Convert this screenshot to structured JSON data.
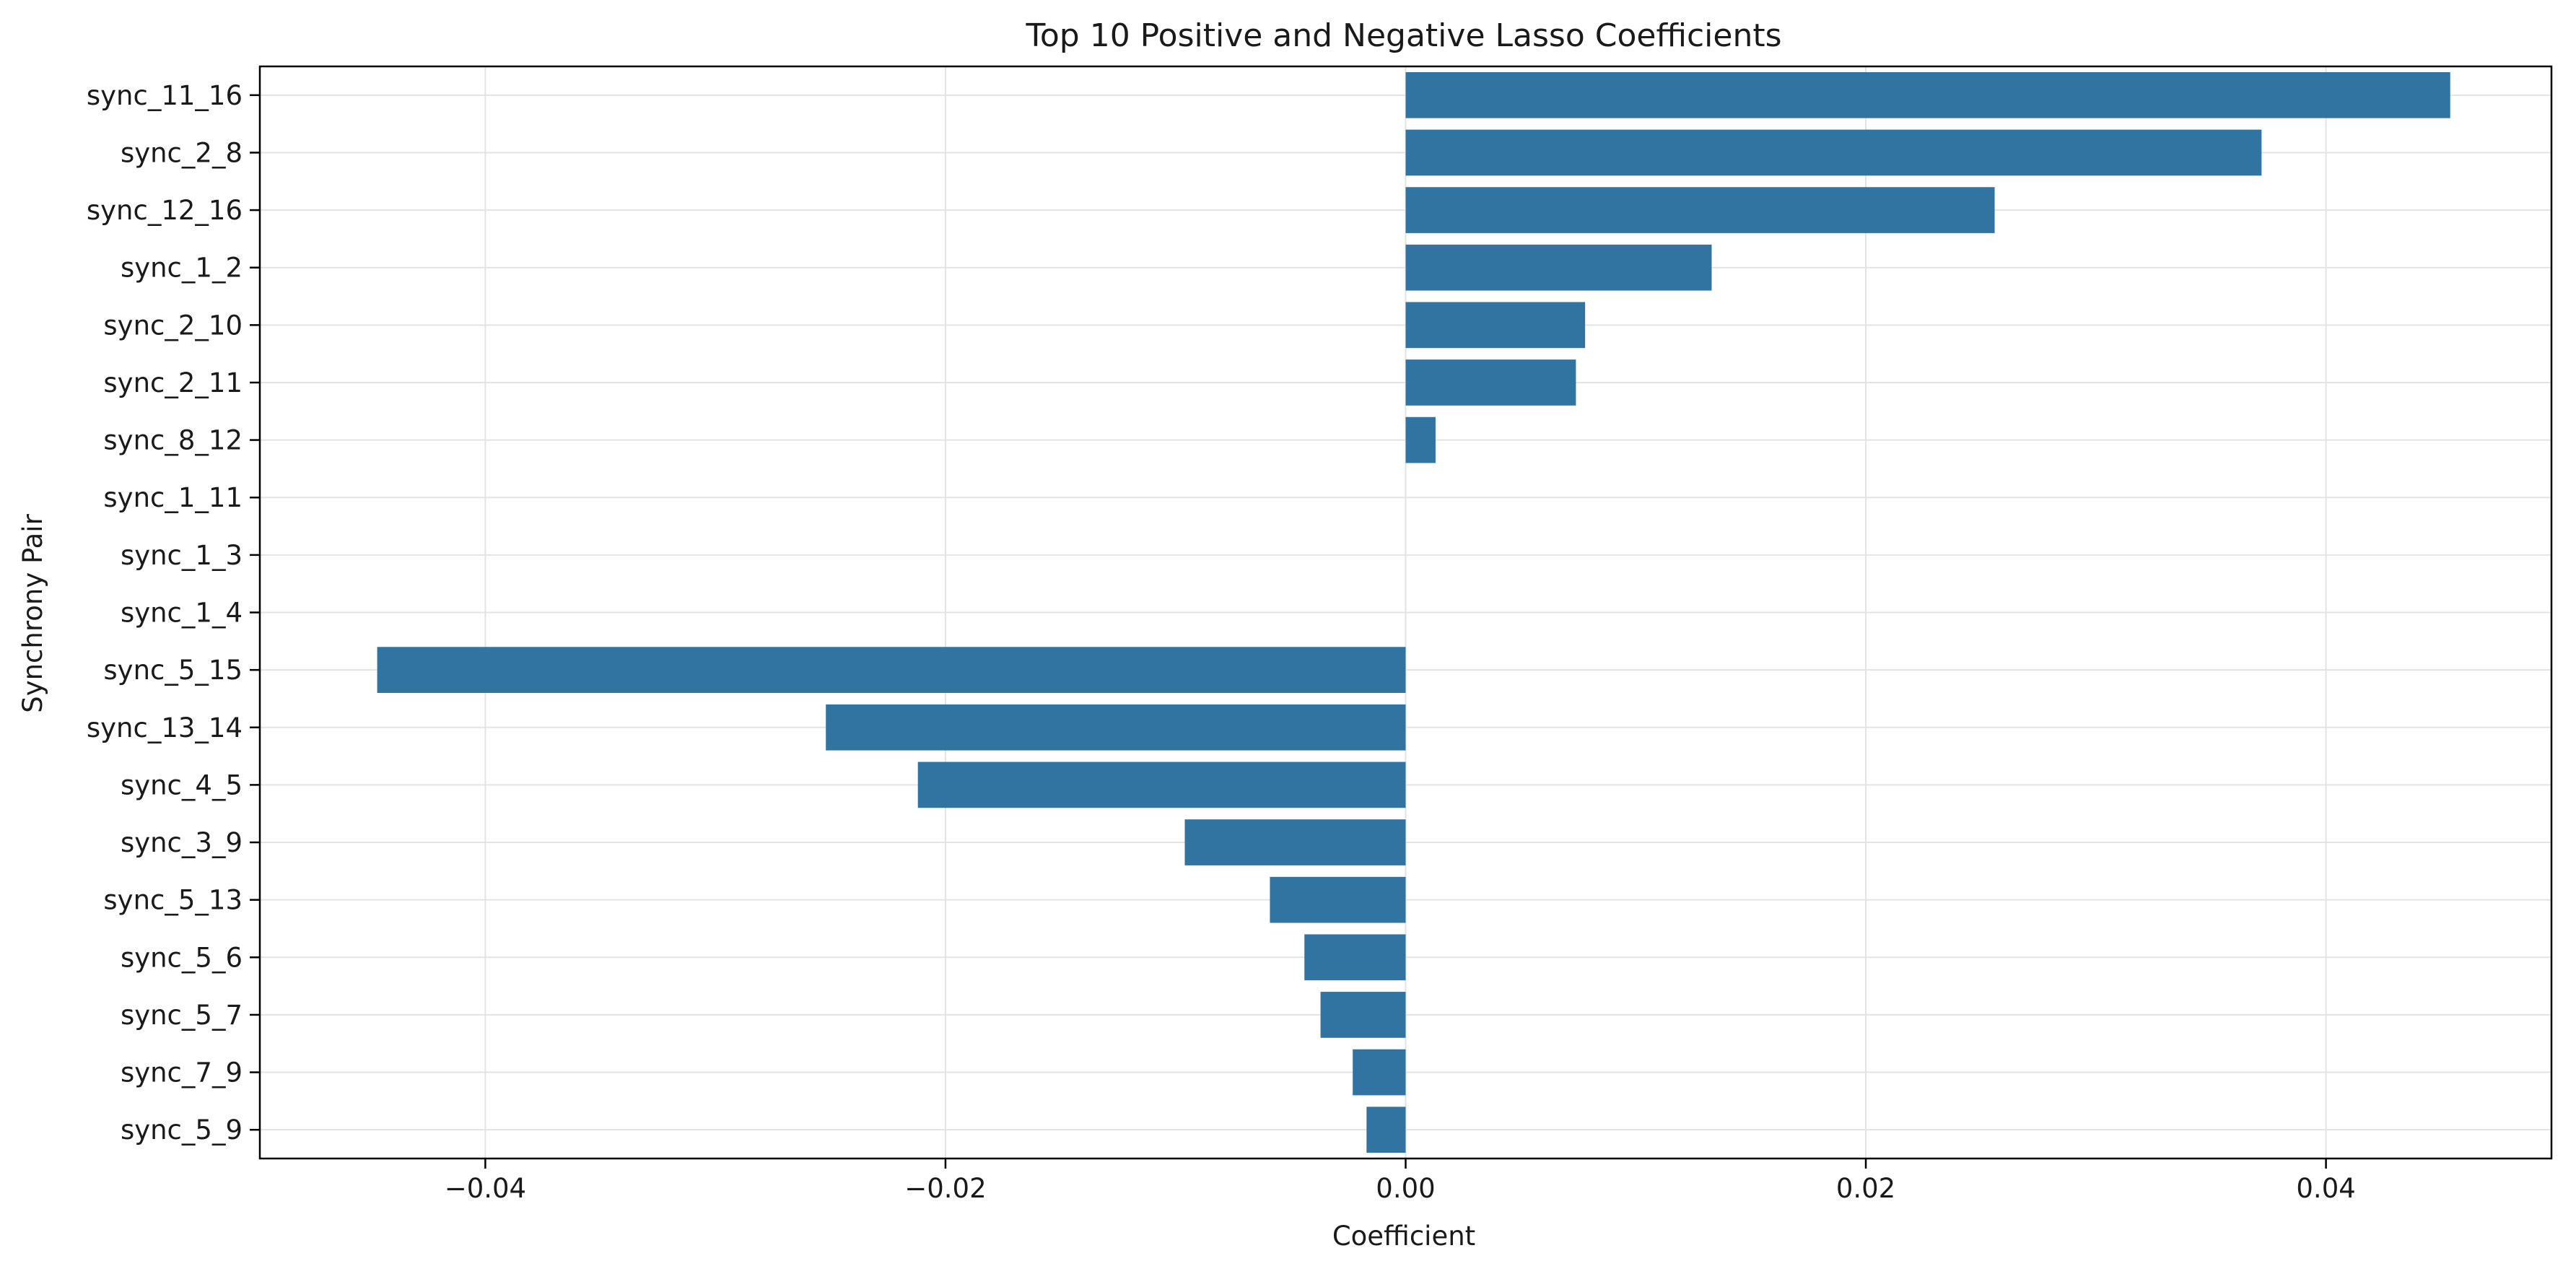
{
  "chart_data": {
    "type": "bar",
    "orientation": "horizontal",
    "title": "Top 10 Positive and Negative Lasso Coefficients",
    "xlabel": "Coefficient",
    "ylabel": "Synchrony Pair",
    "xlim": [
      -0.0498,
      0.0498
    ],
    "xticks": [
      -0.04,
      -0.02,
      0.0,
      0.02,
      0.04
    ],
    "xtick_labels": [
      "−0.04",
      "−0.02",
      "0.00",
      "0.02",
      "0.04"
    ],
    "grid": true,
    "bar_color": "#3274a1",
    "categories": [
      "sync_11_16",
      "sync_2_8",
      "sync_12_16",
      "sync_1_2",
      "sync_2_10",
      "sync_2_11",
      "sync_8_12",
      "sync_1_11",
      "sync_1_3",
      "sync_1_4",
      "sync_5_15",
      "sync_13_14",
      "sync_4_5",
      "sync_3_9",
      "sync_5_13",
      "sync_5_6",
      "sync_5_7",
      "sync_7_9",
      "sync_5_9"
    ],
    "values": [
      0.0454,
      0.0372,
      0.0256,
      0.0133,
      0.0078,
      0.0074,
      0.0013,
      0.0,
      0.0,
      0.0,
      -0.0447,
      -0.0252,
      -0.0212,
      -0.0096,
      -0.0059,
      -0.0044,
      -0.0037,
      -0.0023,
      -0.0017
    ]
  }
}
